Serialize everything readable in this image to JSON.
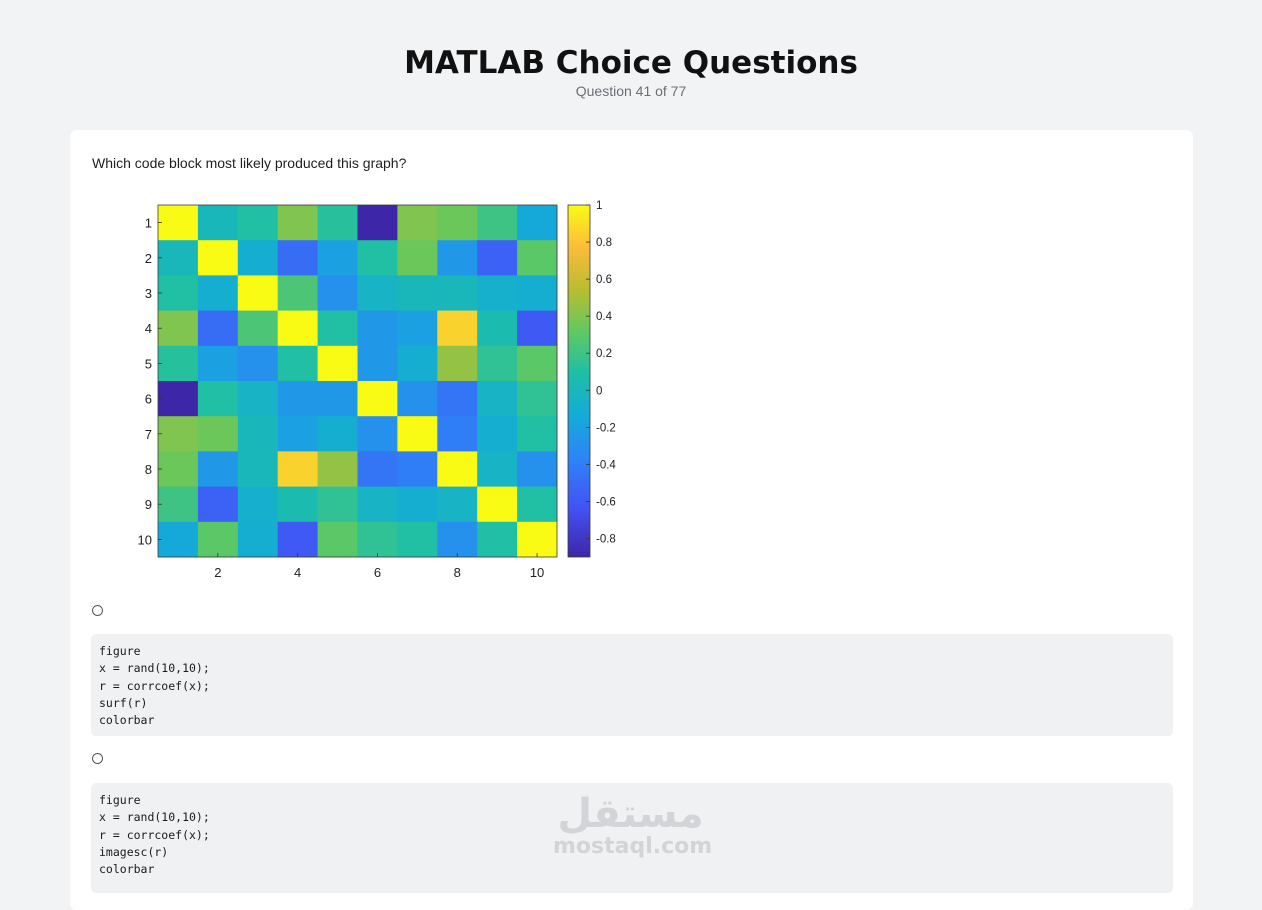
{
  "header": {
    "title": "MATLAB Choice Questions",
    "progress": "Question 41 of 77"
  },
  "question": {
    "prompt": "Which code block most likely produced this graph?"
  },
  "chart_data": {
    "type": "heatmap",
    "rows": 10,
    "cols": 10,
    "x_ticks": [
      "2",
      "4",
      "6",
      "8",
      "10"
    ],
    "y_ticks": [
      "1",
      "2",
      "3",
      "4",
      "5",
      "6",
      "7",
      "8",
      "9",
      "10"
    ],
    "colorbar_ticks": [
      "1",
      "0.8",
      "0.6",
      "0.4",
      "0.2",
      "0",
      "-0.2",
      "-0.4",
      "-0.6",
      "-0.8"
    ],
    "colorbar_range": [
      -0.9,
      1
    ],
    "colormap": "parula",
    "values": [
      [
        1.0,
        0.0,
        0.1,
        0.4,
        0.12,
        -0.9,
        0.4,
        0.35,
        0.2,
        -0.15
      ],
      [
        0.0,
        1.0,
        -0.1,
        -0.5,
        -0.2,
        0.1,
        0.35,
        -0.25,
        -0.55,
        0.3
      ],
      [
        0.1,
        -0.1,
        1.0,
        0.25,
        -0.3,
        -0.05,
        0.0,
        0.0,
        -0.08,
        -0.1
      ],
      [
        0.4,
        -0.5,
        0.25,
        1.0,
        0.1,
        -0.25,
        -0.2,
        0.85,
        0.05,
        -0.6
      ],
      [
        0.12,
        -0.2,
        -0.3,
        0.1,
        1.0,
        -0.25,
        -0.1,
        0.45,
        0.15,
        0.3
      ],
      [
        -0.9,
        0.1,
        -0.05,
        -0.25,
        -0.25,
        1.0,
        -0.3,
        -0.45,
        -0.05,
        0.15
      ],
      [
        0.4,
        0.35,
        0.0,
        -0.2,
        -0.1,
        -0.3,
        1.0,
        -0.4,
        -0.1,
        0.1
      ],
      [
        0.35,
        -0.25,
        0.0,
        0.85,
        0.45,
        -0.45,
        -0.4,
        1.0,
        -0.05,
        -0.3
      ],
      [
        0.2,
        -0.55,
        -0.08,
        0.05,
        0.15,
        -0.05,
        -0.1,
        -0.05,
        1.0,
        0.1
      ],
      [
        -0.15,
        0.3,
        -0.1,
        -0.6,
        0.3,
        0.15,
        0.1,
        -0.3,
        0.1,
        1.0
      ]
    ]
  },
  "options": [
    {
      "code": "figure\nx = rand(10,10);\nr = corrcoef(x);\nsurf(r)\ncolorbar"
    },
    {
      "code": "figure\nx = rand(10,10);\nr = corrcoef(x);\nimagesc(r)\ncolorbar"
    }
  ],
  "watermark": {
    "arabic": "مستقل",
    "latin": "mostaql.com"
  }
}
